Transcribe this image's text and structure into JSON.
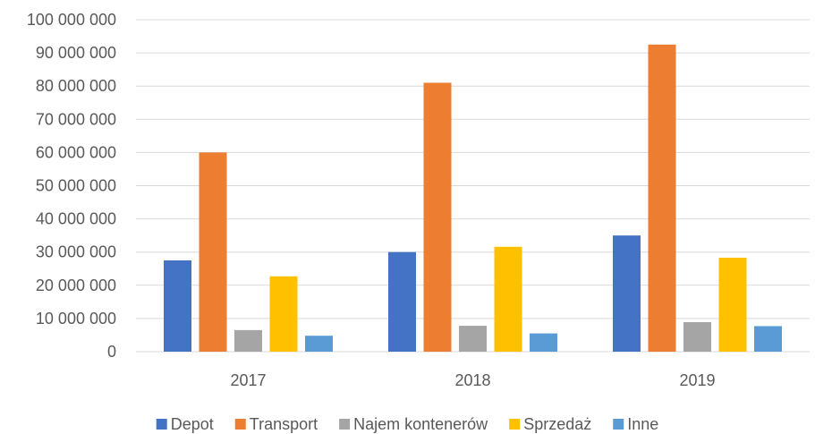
{
  "chart_data": {
    "type": "bar",
    "title": "",
    "xlabel": "",
    "ylabel": "",
    "categories": [
      "2017",
      "2018",
      "2019"
    ],
    "series": [
      {
        "name": "Depot",
        "color": "#4472C4",
        "values": [
          27500000,
          30000000,
          35000000
        ]
      },
      {
        "name": "Transport",
        "color": "#ED7D31",
        "values": [
          60000000,
          81000000,
          92500000
        ]
      },
      {
        "name": "Najem kontenerów",
        "color": "#A5A5A5",
        "values": [
          6500000,
          7800000,
          8900000
        ]
      },
      {
        "name": "Sprzedaż",
        "color": "#FFC000",
        "values": [
          22700000,
          31600000,
          28300000
        ]
      },
      {
        "name": "Inne",
        "color": "#5B9BD5",
        "values": [
          4800000,
          5500000,
          7700000
        ]
      }
    ],
    "ylim": [
      0,
      100000000
    ],
    "y_ticks": [
      "0",
      "10 000 000",
      "20 000 000",
      "30 000 000",
      "40 000 000",
      "50 000 000",
      "60 000 000",
      "70 000 000",
      "80 000 000",
      "90 000 000",
      "100 000 000"
    ],
    "grid": true,
    "legend_position": "bottom",
    "gridline_color": "#D9D9D9"
  }
}
